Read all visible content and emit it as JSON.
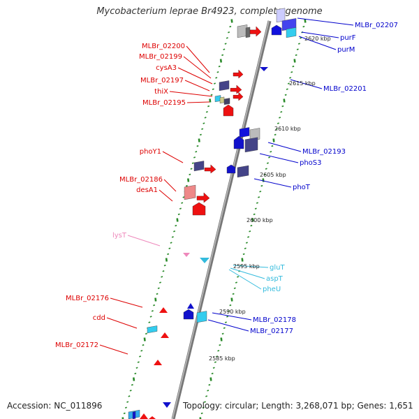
{
  "title": "Mycobacterium leprae Br4923, complete genome",
  "footer": {
    "accession": "Accession: NC_011896",
    "summary": "Topology: circular; Length: 3,268,071 bp; Genes: 1,651"
  },
  "colors": {
    "left_labels": "#dd0000",
    "right_labels": "#0000cc",
    "trna_right": "#33bbdd",
    "trna_left": "#ee88bb",
    "backbone": "#888888",
    "ticks": "#2a8a2a"
  },
  "left_labels": [
    "MLBr_02200",
    "MLBr_02199",
    "cysA3",
    "MLBr_02197",
    "thiX",
    "MLBr_02195",
    "phoY1",
    "MLBr_02186",
    "desA1",
    "lysT",
    "MLBr_02176",
    "cdd",
    "MLBr_02172"
  ],
  "right_labels": [
    "MLBr_02207",
    "purF",
    "purM",
    "MLBr_02201",
    "MLBr_02193",
    "phoS3",
    "phoT",
    "gluT",
    "aspT",
    "pheU",
    "MLBr_02178",
    "MLBr_02177"
  ],
  "kbp_labels": [
    "2620 kbp",
    "2615 kbp",
    "2610 kbp",
    "2605 kbp",
    "2600 kbp",
    "2595 kbp",
    "2590 kbp",
    "2585 kbp"
  ]
}
